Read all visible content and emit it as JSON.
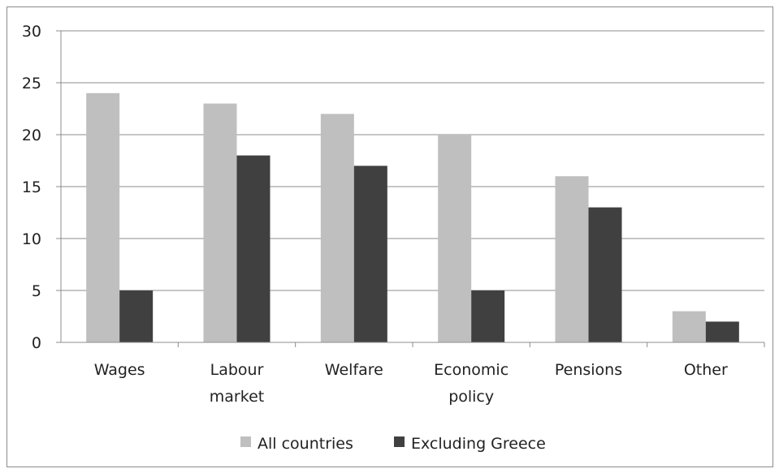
{
  "chart_data": {
    "type": "bar",
    "categories": [
      [
        "Wages"
      ],
      [
        "Labour",
        "market"
      ],
      [
        "Welfare"
      ],
      [
        "Economic",
        "policy"
      ],
      [
        "Pensions"
      ],
      [
        "Other"
      ]
    ],
    "series": [
      {
        "name": "All countries",
        "color": "#bfbfbf",
        "values": [
          24,
          23,
          22,
          20,
          16,
          3
        ]
      },
      {
        "name": "Excluding Greece",
        "color": "#404040",
        "values": [
          5,
          18,
          17,
          5,
          13,
          2
        ]
      }
    ],
    "title": "",
    "xlabel": "",
    "ylabel": "",
    "ylim": [
      0,
      30
    ],
    "yticks": [
      0,
      5,
      10,
      15,
      20,
      25,
      30
    ],
    "grid": true,
    "legend_position": "bottom"
  }
}
